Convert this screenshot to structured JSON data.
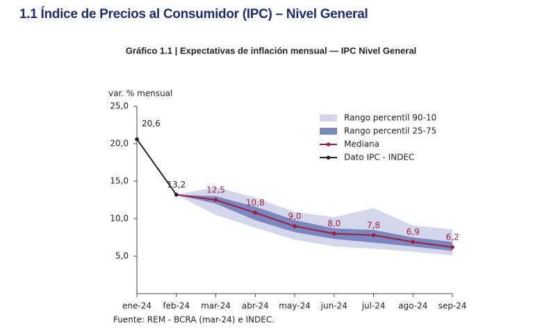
{
  "header": {
    "title": "1.1 Índice de Precios al Consumidor (IPC) – Nivel General"
  },
  "chart_data": {
    "type": "line",
    "title": "Gráfico 1.1 | Expectativas de inflación mensual — IPC Nivel General",
    "y_label": "var. % mensual",
    "source": "Fuente: REM - BCRA (mar-24) e INDEC.",
    "categories": [
      "ene-24",
      "feb-24",
      "mar-24",
      "abr-24",
      "may-24",
      "jun-24",
      "jul-24",
      "ago-24",
      "sep-24"
    ],
    "ylim": [
      0,
      25
    ],
    "yticks": [
      {
        "value": 5,
        "label": "5,0"
      },
      {
        "value": 10,
        "label": "10,0"
      },
      {
        "value": 15,
        "label": "15,0"
      },
      {
        "value": 20,
        "label": "20,0"
      },
      {
        "value": 25,
        "label": "25,0"
      }
    ],
    "bands": [
      {
        "name": "Rango percentil 90-10",
        "color": "#d4d6ec",
        "low": [
          null,
          13.2,
          10.5,
          8.8,
          7.2,
          6.3,
          6.0,
          5.6,
          5.1
        ],
        "high": [
          null,
          13.2,
          14.2,
          12.8,
          10.9,
          10.2,
          11.4,
          9.1,
          8.6
        ]
      },
      {
        "name": "Rango percentil 25-75",
        "color": "#7b86bd",
        "low": [
          null,
          13.2,
          12.0,
          9.8,
          8.2,
          7.3,
          6.8,
          6.3,
          5.7
        ],
        "high": [
          null,
          13.2,
          13.0,
          11.6,
          9.8,
          8.7,
          8.5,
          7.5,
          6.9
        ]
      }
    ],
    "series": [
      {
        "name": "Mediana",
        "color": "#9b1b3f",
        "values": [
          null,
          13.2,
          12.5,
          10.8,
          9.0,
          8.0,
          7.8,
          6.9,
          6.2
        ],
        "value_labels": [
          null,
          null,
          "12,5",
          "10,8",
          "9,0",
          "8,0",
          "7,8",
          "6,9",
          "6,2"
        ]
      },
      {
        "name": "Dato IPC - INDEC",
        "color": "#222222",
        "values": [
          20.6,
          13.2,
          null,
          null,
          null,
          null,
          null,
          null,
          null
        ],
        "value_labels": [
          "20,6",
          "13,2",
          null,
          null,
          null,
          null,
          null,
          null,
          null
        ]
      }
    ]
  }
}
